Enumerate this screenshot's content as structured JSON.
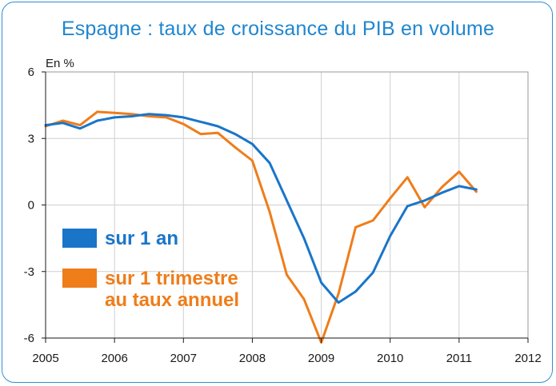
{
  "chart_data": {
    "type": "line",
    "title": "Espagne : taux de croissance du PIB en volume",
    "ylabel": "En %",
    "xlabel": "",
    "xlim": [
      2005,
      2012
    ],
    "ylim": [
      -6,
      6
    ],
    "x_ticks": [
      "2005",
      "2006",
      "2007",
      "2008",
      "2009",
      "2010",
      "2011",
      "2012"
    ],
    "y_ticks": [
      "6",
      "3",
      "0",
      "-3",
      "-6"
    ],
    "grid": true,
    "legend_position": "left-middle",
    "series": [
      {
        "name": "sur 1 an",
        "color": "#1a75c9",
        "x": [
          2005.0,
          2005.25,
          2005.5,
          2005.75,
          2006.0,
          2006.25,
          2006.5,
          2006.75,
          2007.0,
          2007.25,
          2007.5,
          2007.75,
          2008.0,
          2008.25,
          2008.5,
          2008.75,
          2009.0,
          2009.25,
          2009.5,
          2009.75,
          2010.0,
          2010.25,
          2010.5,
          2010.75,
          2011.0,
          2011.25
        ],
        "values": [
          3.6,
          3.7,
          3.45,
          3.8,
          3.95,
          4.0,
          4.1,
          4.05,
          3.95,
          3.75,
          3.55,
          3.2,
          2.75,
          1.9,
          0.2,
          -1.5,
          -3.5,
          -4.4,
          -3.9,
          -3.05,
          -1.4,
          -0.05,
          0.2,
          0.55,
          0.85,
          0.7
        ]
      },
      {
        "name": "sur 1 trimestre au taux annuel",
        "color": "#ef7d1a",
        "x": [
          2005.0,
          2005.25,
          2005.5,
          2005.75,
          2006.0,
          2006.25,
          2006.5,
          2006.75,
          2007.0,
          2007.25,
          2007.5,
          2007.75,
          2008.0,
          2008.25,
          2008.5,
          2008.75,
          2009.0,
          2009.25,
          2009.5,
          2009.75,
          2010.0,
          2010.25,
          2010.5,
          2010.75,
          2011.0,
          2011.25
        ],
        "values": [
          3.55,
          3.8,
          3.6,
          4.2,
          4.15,
          4.1,
          4.0,
          3.95,
          3.65,
          3.2,
          3.25,
          2.6,
          2.0,
          -0.3,
          -3.15,
          -4.25,
          -6.2,
          -4.0,
          -1.0,
          -0.7,
          0.3,
          1.25,
          -0.1,
          0.8,
          1.5,
          0.6
        ]
      }
    ],
    "legend": [
      {
        "series": 0,
        "lines": [
          "sur 1 an"
        ]
      },
      {
        "series": 1,
        "lines": [
          "sur 1 trimestre",
          "au taux annuel"
        ]
      }
    ]
  }
}
